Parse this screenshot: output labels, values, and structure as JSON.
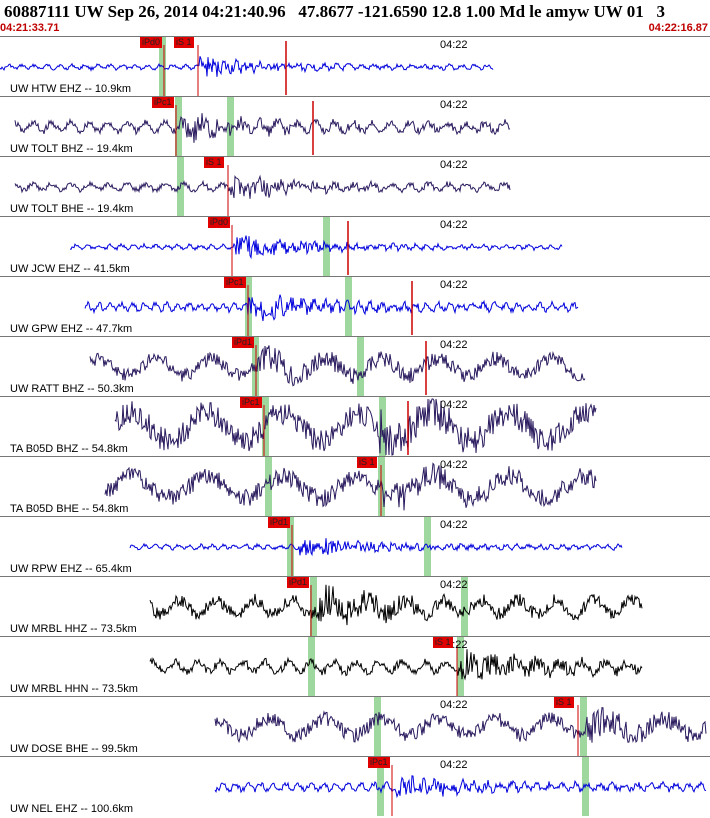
{
  "header": {
    "title": "60887111 UW Sep 26, 2014 04:21:40.96   47.8677 -121.6590 12.8 1.00 Md le amyw UW 01   3",
    "start_time": "04:21:33.71",
    "end_time": "04:22:16.87"
  },
  "colors": {
    "blue": "#0000dd",
    "purple": "#2a1a5e",
    "black": "#000000",
    "pick_red": "#e00000",
    "window_green": "#9fd89f"
  },
  "traces": [
    {
      "label": "UW HTW EHZ -- 10.9km",
      "time_label": "04:22",
      "picks": [
        "iPd0",
        "iS 1"
      ],
      "color": "blue"
    },
    {
      "label": "UW TOLT BHZ -- 19.4km",
      "time_label": "04:22",
      "picks": [
        "iPc1"
      ],
      "color": "purple"
    },
    {
      "label": "UW TOLT BHE -- 19.4km",
      "time_label": "04:22",
      "picks": [
        "iS 1"
      ],
      "color": "purple"
    },
    {
      "label": "UW JCW EHZ -- 41.5km",
      "time_label": "04:22",
      "picks": [
        "iPd0"
      ],
      "color": "blue"
    },
    {
      "label": "UW GPW EHZ -- 47.7km",
      "time_label": "04:22",
      "picks": [
        "iPc1"
      ],
      "color": "blue"
    },
    {
      "label": "UW RATT BHZ -- 50.3km",
      "time_label": "04:22",
      "picks": [
        "iPd1"
      ],
      "color": "purple"
    },
    {
      "label": "TA B05D BHZ -- 54.8km",
      "time_label": "04:22",
      "picks": [
        "iPc1"
      ],
      "color": "purple"
    },
    {
      "label": "TA B05D BHE -- 54.8km",
      "time_label": "04:22",
      "picks": [
        "iS 1"
      ],
      "color": "purple"
    },
    {
      "label": "UW RPW EHZ -- 65.4km",
      "time_label": "04:22",
      "picks": [
        "iPd1"
      ],
      "color": "blue"
    },
    {
      "label": "UW MRBL HHZ -- 73.5km",
      "time_label": "04:22",
      "picks": [
        "iPd1"
      ],
      "color": "black"
    },
    {
      "label": "UW MRBL HHN -- 73.5km",
      "time_label": "04:22",
      "picks": [
        "iS 1"
      ],
      "color": "black"
    },
    {
      "label": "UW DOSE BHE -- 99.5km",
      "time_label": "04:22",
      "picks": [
        "iS 1"
      ],
      "color": "purple"
    },
    {
      "label": "UW NEL EHZ -- 100.6km",
      "time_label": "04:22",
      "picks": [
        "iPc1"
      ],
      "color": "blue"
    }
  ]
}
